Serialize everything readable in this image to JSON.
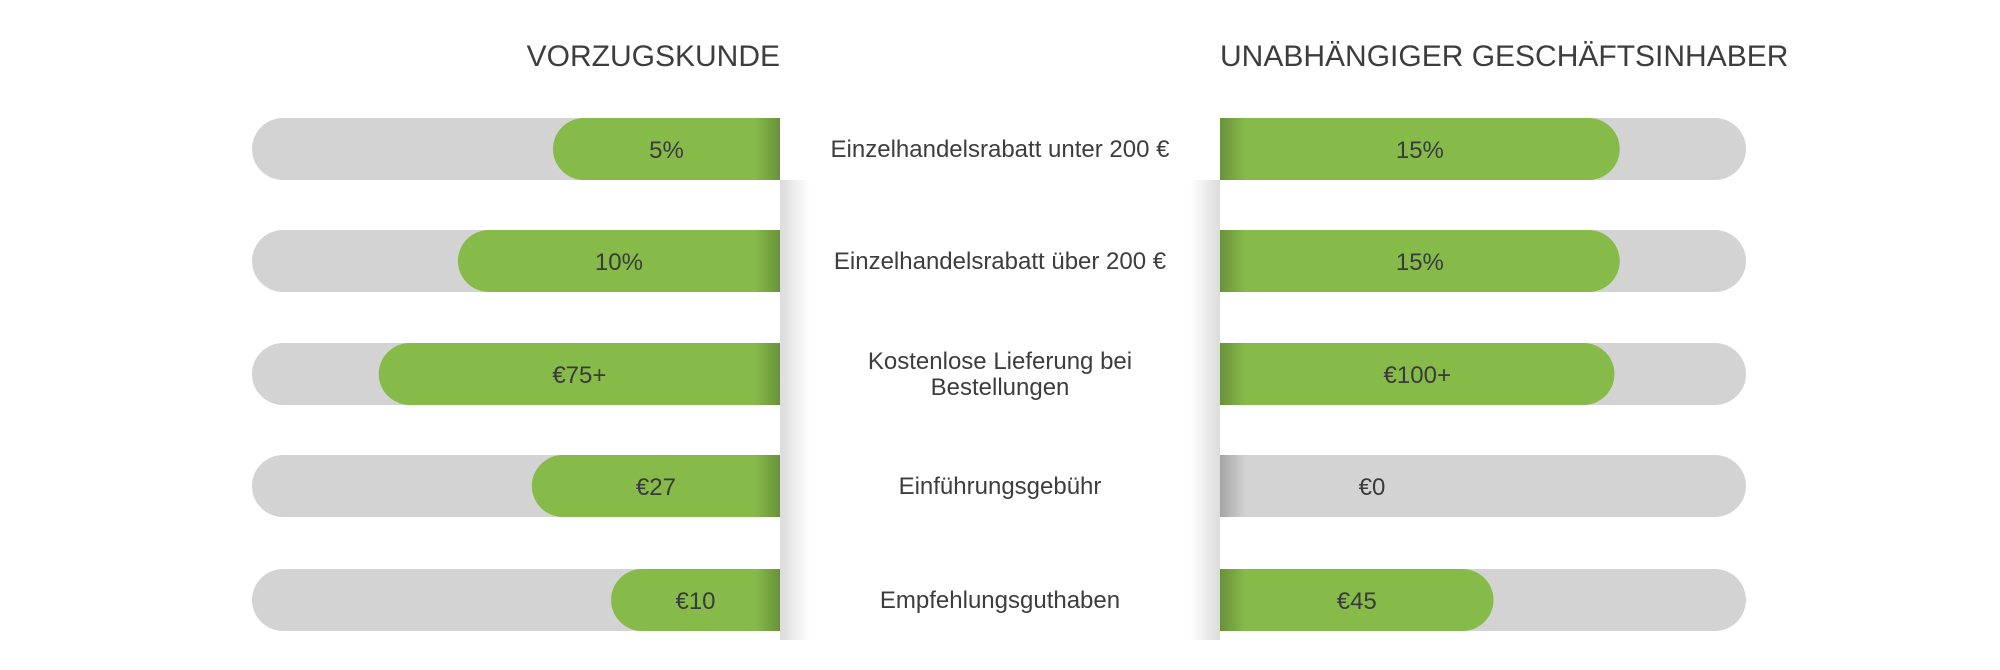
{
  "chart_data": {
    "type": "bar",
    "layout": "butterfly",
    "left_title": "VORZUGSKUNDE",
    "right_title": "UNABHÄNGIGER GESCHÄFTSINHABER",
    "categories": [
      [
        "Einzelhandelsrabatt unter 200 €"
      ],
      [
        "Einzelhandelsrabatt über 200 €"
      ],
      [
        "Kostenlose Lieferung bei",
        "Bestellungen"
      ],
      [
        "Einführungsgebühr"
      ],
      [
        "Empfehlungsguthaben"
      ]
    ],
    "left": {
      "labels": [
        "5%",
        "10%",
        "€75+",
        "€27",
        "€10"
      ],
      "fill": [
        0.43,
        0.61,
        0.76,
        0.47,
        0.32
      ]
    },
    "right": {
      "labels": [
        "15%",
        "15%",
        "€100+",
        "€0",
        "€45"
      ],
      "fill": [
        0.76,
        0.76,
        0.75,
        0.0,
        0.52
      ]
    },
    "colors": {
      "track": "#d3d3d3",
      "bar": "#86bb4a",
      "text": "#3d3d3d"
    }
  }
}
